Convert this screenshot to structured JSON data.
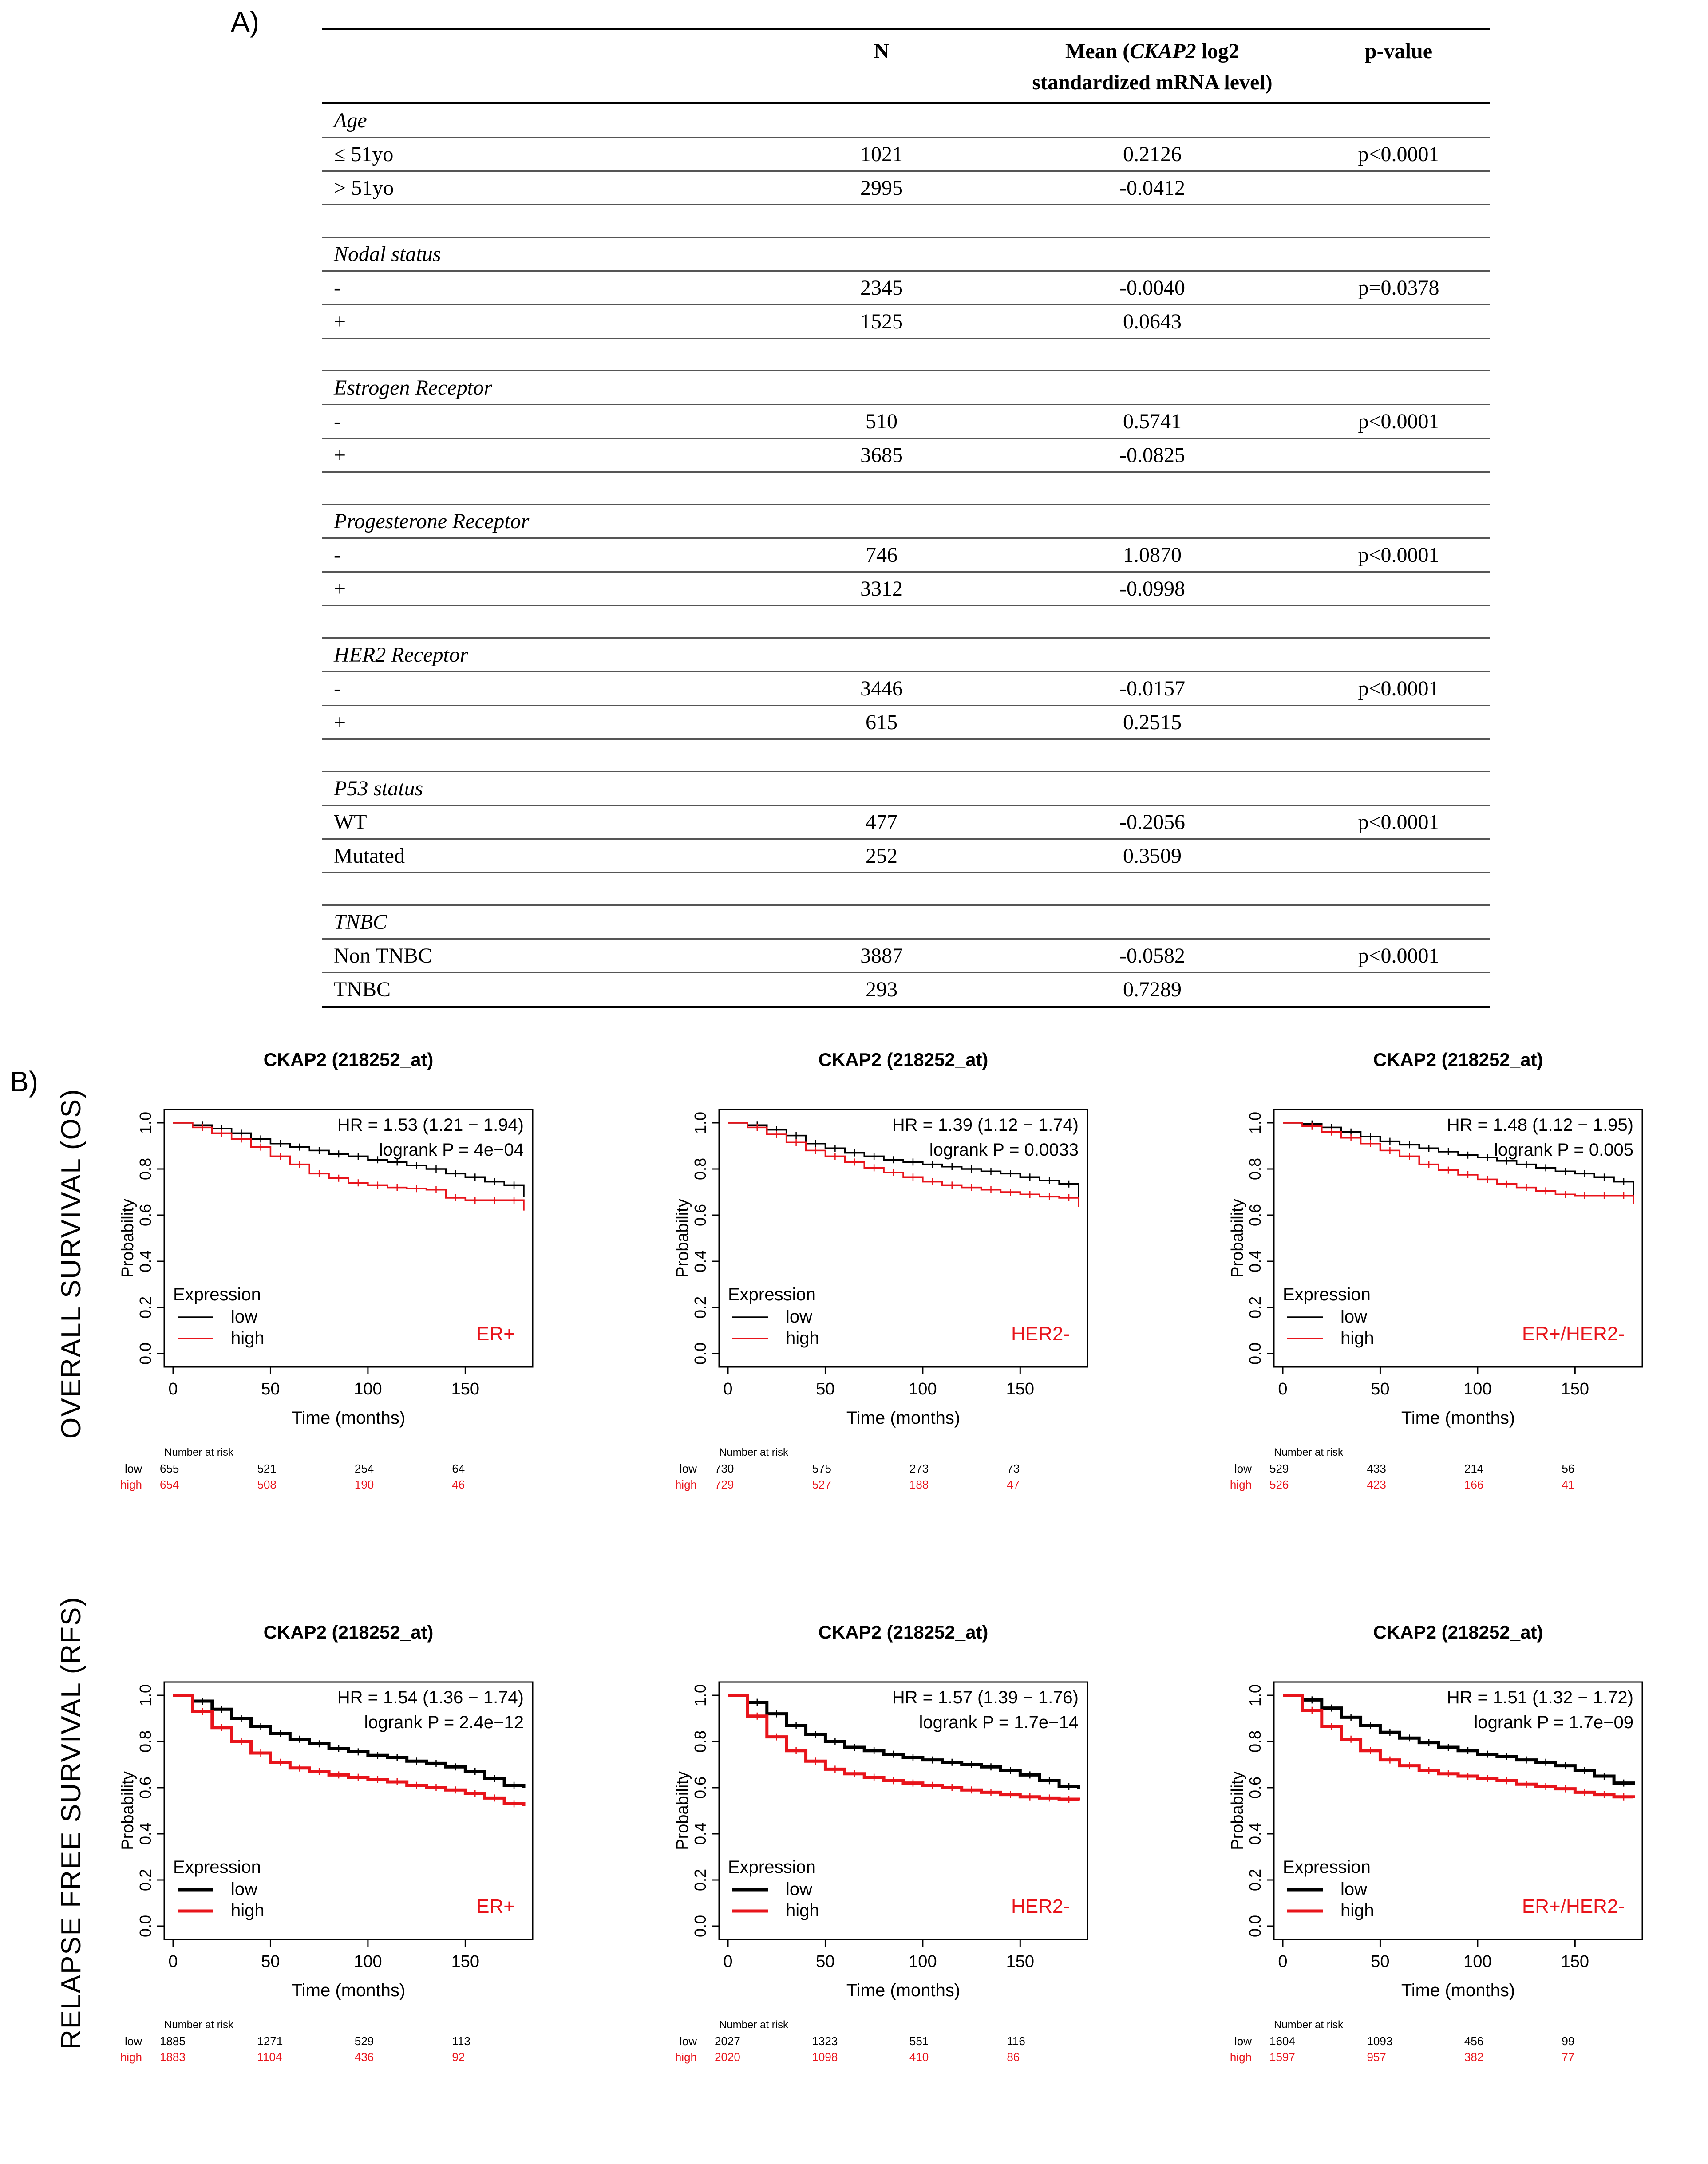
{
  "panel_a": {
    "label": "A)",
    "headers": {
      "n": "N",
      "mean_prefix": "Mean (",
      "mean_gene": "CKAP2",
      "mean_suffix": " log2",
      "mean_line2": "standardized mRNA level)",
      "p": "p-value"
    },
    "groups": [
      {
        "name": "Age",
        "rows": [
          {
            "label": "≤ 51yo",
            "n": "1021",
            "mean": "0.2126",
            "p": "p<0.0001"
          },
          {
            "label": "> 51yo",
            "n": "2995",
            "mean": "-0.0412",
            "p": ""
          }
        ]
      },
      {
        "name": "Nodal status",
        "rows": [
          {
            "label": "-",
            "n": "2345",
            "mean": "-0.0040",
            "p": "p=0.0378"
          },
          {
            "label": "+",
            "n": "1525",
            "mean": "0.0643",
            "p": ""
          }
        ]
      },
      {
        "name": "Estrogen Receptor",
        "rows": [
          {
            "label": "-",
            "n": "510",
            "mean": "0.5741",
            "p": "p<0.0001"
          },
          {
            "label": "+",
            "n": "3685",
            "mean": "-0.0825",
            "p": ""
          }
        ]
      },
      {
        "name": "Progesterone Receptor",
        "rows": [
          {
            "label": "-",
            "n": "746",
            "mean": "1.0870",
            "p": "p<0.0001"
          },
          {
            "label": "+",
            "n": "3312",
            "mean": "-0.0998",
            "p": ""
          }
        ]
      },
      {
        "name": "HER2 Receptor",
        "rows": [
          {
            "label": "-",
            "n": "3446",
            "mean": "-0.0157",
            "p": "p<0.0001"
          },
          {
            "label": "+",
            "n": "615",
            "mean": "0.2515",
            "p": ""
          }
        ]
      },
      {
        "name": "P53 status",
        "rows": [
          {
            "label": "WT",
            "n": "477",
            "mean": "-0.2056",
            "p": "p<0.0001"
          },
          {
            "label": "Mutated",
            "n": "252",
            "mean": "0.3509",
            "p": ""
          }
        ]
      },
      {
        "name": "TNBC",
        "rows": [
          {
            "label": "Non TNBC",
            "n": "3887",
            "mean": "-0.0582",
            "p": "p<0.0001"
          },
          {
            "label": "TNBC",
            "n": "293",
            "mean": "0.7289",
            "p": ""
          }
        ]
      }
    ]
  },
  "panel_b": {
    "label": "B)",
    "row_labels": [
      "OVERALL SURVIVAL (OS)",
      "RELAPSE FREE SURVIVAL (RFS)"
    ]
  },
  "colors": {
    "low": "#000000",
    "high": "#e8141b"
  },
  "chart_data": [
    {
      "type": "line",
      "row": 0,
      "title": "CKAP2 (218252_at)",
      "subgroup": "ER+",
      "hr_text": "HR = 1.53 (1.21 − 1.94)",
      "p_text": "logrank P = 4e−04",
      "xlabel": "Time (months)",
      "ylabel": "Probability",
      "xlim": [
        0,
        180
      ],
      "ylim": [
        0,
        1
      ],
      "xticks": [
        0,
        50,
        100,
        150
      ],
      "yticks": [
        "0.0",
        "0.2",
        "0.4",
        "0.6",
        "0.8",
        "1.0"
      ],
      "legend_title": "Expression",
      "legend": [
        "low",
        "high"
      ],
      "x": [
        0,
        10,
        20,
        30,
        40,
        50,
        60,
        70,
        80,
        90,
        100,
        110,
        120,
        130,
        140,
        150,
        160,
        170,
        180
      ],
      "series": [
        {
          "name": "low",
          "values": [
            1.0,
            0.99,
            0.975,
            0.955,
            0.93,
            0.91,
            0.895,
            0.88,
            0.865,
            0.855,
            0.84,
            0.83,
            0.815,
            0.8,
            0.78,
            0.765,
            0.745,
            0.73,
            0.68
          ]
        },
        {
          "name": "high",
          "values": [
            1.0,
            0.98,
            0.955,
            0.93,
            0.895,
            0.855,
            0.82,
            0.78,
            0.76,
            0.74,
            0.73,
            0.72,
            0.715,
            0.71,
            0.675,
            0.665,
            0.665,
            0.665,
            0.62
          ]
        }
      ],
      "risk": {
        "header": "Number at risk",
        "rows": [
          {
            "name": "low",
            "values": [
              "655",
              "521",
              "254",
              "64"
            ]
          },
          {
            "name": "high",
            "values": [
              "654",
              "508",
              "190",
              "46"
            ]
          }
        ]
      }
    },
    {
      "type": "line",
      "row": 0,
      "title": "CKAP2 (218252_at)",
      "subgroup": "HER2-",
      "hr_text": "HR = 1.39 (1.12 − 1.74)",
      "p_text": "logrank P = 0.0033",
      "xlabel": "Time (months)",
      "ylabel": "Probability",
      "xlim": [
        0,
        180
      ],
      "ylim": [
        0,
        1
      ],
      "xticks": [
        0,
        50,
        100,
        150
      ],
      "yticks": [
        "0.0",
        "0.2",
        "0.4",
        "0.6",
        "0.8",
        "1.0"
      ],
      "legend_title": "Expression",
      "legend": [
        "low",
        "high"
      ],
      "x": [
        0,
        10,
        20,
        30,
        40,
        50,
        60,
        70,
        80,
        90,
        100,
        110,
        120,
        130,
        140,
        150,
        160,
        170,
        180
      ],
      "series": [
        {
          "name": "low",
          "values": [
            1.0,
            0.99,
            0.97,
            0.945,
            0.91,
            0.89,
            0.87,
            0.855,
            0.84,
            0.83,
            0.82,
            0.81,
            0.8,
            0.79,
            0.78,
            0.765,
            0.75,
            0.735,
            0.68
          ]
        },
        {
          "name": "high",
          "values": [
            1.0,
            0.98,
            0.95,
            0.915,
            0.88,
            0.855,
            0.83,
            0.805,
            0.785,
            0.765,
            0.745,
            0.73,
            0.72,
            0.71,
            0.7,
            0.69,
            0.68,
            0.675,
            0.635
          ]
        }
      ],
      "risk": {
        "header": "Number at risk",
        "rows": [
          {
            "name": "low",
            "values": [
              "730",
              "575",
              "273",
              "73"
            ]
          },
          {
            "name": "high",
            "values": [
              "729",
              "527",
              "188",
              "47"
            ]
          }
        ]
      }
    },
    {
      "type": "line",
      "row": 0,
      "title": "CKAP2 (218252_at)",
      "subgroup": "ER+/HER2-",
      "hr_text": "HR = 1.48 (1.12 − 1.95)",
      "p_text": "logrank P = 0.005",
      "xlabel": "Time (months)",
      "ylabel": "Probability",
      "xlim": [
        0,
        180
      ],
      "ylim": [
        0,
        1
      ],
      "xticks": [
        0,
        50,
        100,
        150
      ],
      "yticks": [
        "0.0",
        "0.2",
        "0.4",
        "0.6",
        "0.8",
        "1.0"
      ],
      "legend_title": "Expression",
      "legend": [
        "low",
        "high"
      ],
      "x": [
        0,
        10,
        20,
        30,
        40,
        50,
        60,
        70,
        80,
        90,
        100,
        110,
        120,
        130,
        140,
        150,
        160,
        170,
        180
      ],
      "series": [
        {
          "name": "low",
          "values": [
            1.0,
            0.995,
            0.98,
            0.96,
            0.94,
            0.92,
            0.905,
            0.89,
            0.875,
            0.86,
            0.85,
            0.835,
            0.82,
            0.805,
            0.79,
            0.78,
            0.765,
            0.745,
            0.68
          ]
        },
        {
          "name": "high",
          "values": [
            1.0,
            0.985,
            0.96,
            0.935,
            0.91,
            0.88,
            0.855,
            0.82,
            0.795,
            0.775,
            0.755,
            0.735,
            0.72,
            0.705,
            0.69,
            0.685,
            0.685,
            0.685,
            0.65
          ]
        }
      ],
      "risk": {
        "header": "Number at risk",
        "rows": [
          {
            "name": "low",
            "values": [
              "529",
              "433",
              "214",
              "56"
            ]
          },
          {
            "name": "high",
            "values": [
              "526",
              "423",
              "166",
              "41"
            ]
          }
        ]
      }
    },
    {
      "type": "line",
      "row": 1,
      "title": "CKAP2 (218252_at)",
      "subgroup": "ER+",
      "hr_text": "HR = 1.54 (1.36 − 1.74)",
      "p_text": "logrank P = 2.4e−12",
      "xlabel": "Time (months)",
      "ylabel": "Probability",
      "xlim": [
        0,
        180
      ],
      "ylim": [
        0,
        1
      ],
      "xticks": [
        0,
        50,
        100,
        150
      ],
      "yticks": [
        "0.0",
        "0.2",
        "0.4",
        "0.6",
        "0.8",
        "1.0"
      ],
      "legend_title": "Expression",
      "legend": [
        "low",
        "high"
      ],
      "x": [
        0,
        10,
        20,
        30,
        40,
        50,
        60,
        70,
        80,
        90,
        100,
        110,
        120,
        130,
        140,
        150,
        160,
        170,
        180
      ],
      "series": [
        {
          "name": "low",
          "values": [
            1.0,
            0.975,
            0.94,
            0.9,
            0.865,
            0.835,
            0.81,
            0.79,
            0.77,
            0.755,
            0.74,
            0.73,
            0.715,
            0.705,
            0.69,
            0.67,
            0.64,
            0.61,
            0.6
          ]
        },
        {
          "name": "high",
          "values": [
            1.0,
            0.93,
            0.86,
            0.8,
            0.75,
            0.71,
            0.685,
            0.67,
            0.655,
            0.645,
            0.635,
            0.625,
            0.61,
            0.6,
            0.59,
            0.575,
            0.555,
            0.53,
            0.52
          ]
        }
      ],
      "risk": {
        "header": "Number at risk",
        "rows": [
          {
            "name": "low",
            "values": [
              "1885",
              "1271",
              "529",
              "113"
            ]
          },
          {
            "name": "high",
            "values": [
              "1883",
              "1104",
              "436",
              "92"
            ]
          }
        ]
      }
    },
    {
      "type": "line",
      "row": 1,
      "title": "CKAP2 (218252_at)",
      "subgroup": "HER2-",
      "hr_text": "HR = 1.57 (1.39 − 1.76)",
      "p_text": "logrank P = 1.7e−14",
      "xlabel": "Time (months)",
      "ylabel": "Probability",
      "xlim": [
        0,
        180
      ],
      "ylim": [
        0,
        1
      ],
      "xticks": [
        0,
        50,
        100,
        150
      ],
      "yticks": [
        "0.0",
        "0.2",
        "0.4",
        "0.6",
        "0.8",
        "1.0"
      ],
      "legend_title": "Expression",
      "legend": [
        "low",
        "high"
      ],
      "x": [
        0,
        10,
        20,
        30,
        40,
        50,
        60,
        70,
        80,
        90,
        100,
        110,
        120,
        130,
        140,
        150,
        160,
        170,
        180
      ],
      "series": [
        {
          "name": "low",
          "values": [
            1.0,
            0.97,
            0.92,
            0.87,
            0.83,
            0.8,
            0.775,
            0.76,
            0.745,
            0.73,
            0.72,
            0.71,
            0.7,
            0.69,
            0.675,
            0.655,
            0.63,
            0.605,
            0.595
          ]
        },
        {
          "name": "high",
          "values": [
            1.0,
            0.91,
            0.82,
            0.76,
            0.715,
            0.68,
            0.66,
            0.645,
            0.63,
            0.62,
            0.61,
            0.6,
            0.59,
            0.58,
            0.57,
            0.56,
            0.555,
            0.55,
            0.545
          ]
        }
      ],
      "risk": {
        "header": "Number at risk",
        "rows": [
          {
            "name": "low",
            "values": [
              "2027",
              "1323",
              "551",
              "116"
            ]
          },
          {
            "name": "high",
            "values": [
              "2020",
              "1098",
              "410",
              "86"
            ]
          }
        ]
      }
    },
    {
      "type": "line",
      "row": 1,
      "title": "CKAP2 (218252_at)",
      "subgroup": "ER+/HER2-",
      "hr_text": "HR = 1.51 (1.32 − 1.72)",
      "p_text": "logrank P = 1.7e−09",
      "xlabel": "Time (months)",
      "ylabel": "Probability",
      "xlim": [
        0,
        180
      ],
      "ylim": [
        0,
        1
      ],
      "xticks": [
        0,
        50,
        100,
        150
      ],
      "yticks": [
        "0.0",
        "0.2",
        "0.4",
        "0.6",
        "0.8",
        "1.0"
      ],
      "legend_title": "Expression",
      "legend": [
        "low",
        "high"
      ],
      "x": [
        0,
        10,
        20,
        30,
        40,
        50,
        60,
        70,
        80,
        90,
        100,
        110,
        120,
        130,
        140,
        150,
        160,
        170,
        180
      ],
      "series": [
        {
          "name": "low",
          "values": [
            1.0,
            0.98,
            0.945,
            0.905,
            0.87,
            0.84,
            0.815,
            0.795,
            0.775,
            0.76,
            0.745,
            0.735,
            0.72,
            0.71,
            0.695,
            0.675,
            0.65,
            0.62,
            0.61
          ]
        },
        {
          "name": "high",
          "values": [
            1.0,
            0.935,
            0.865,
            0.81,
            0.76,
            0.72,
            0.695,
            0.675,
            0.66,
            0.65,
            0.64,
            0.63,
            0.615,
            0.605,
            0.595,
            0.58,
            0.57,
            0.56,
            0.555
          ]
        }
      ],
      "risk": {
        "header": "Number at risk",
        "rows": [
          {
            "name": "low",
            "values": [
              "1604",
              "1093",
              "456",
              "99"
            ]
          },
          {
            "name": "high",
            "values": [
              "1597",
              "957",
              "382",
              "77"
            ]
          }
        ]
      }
    }
  ]
}
